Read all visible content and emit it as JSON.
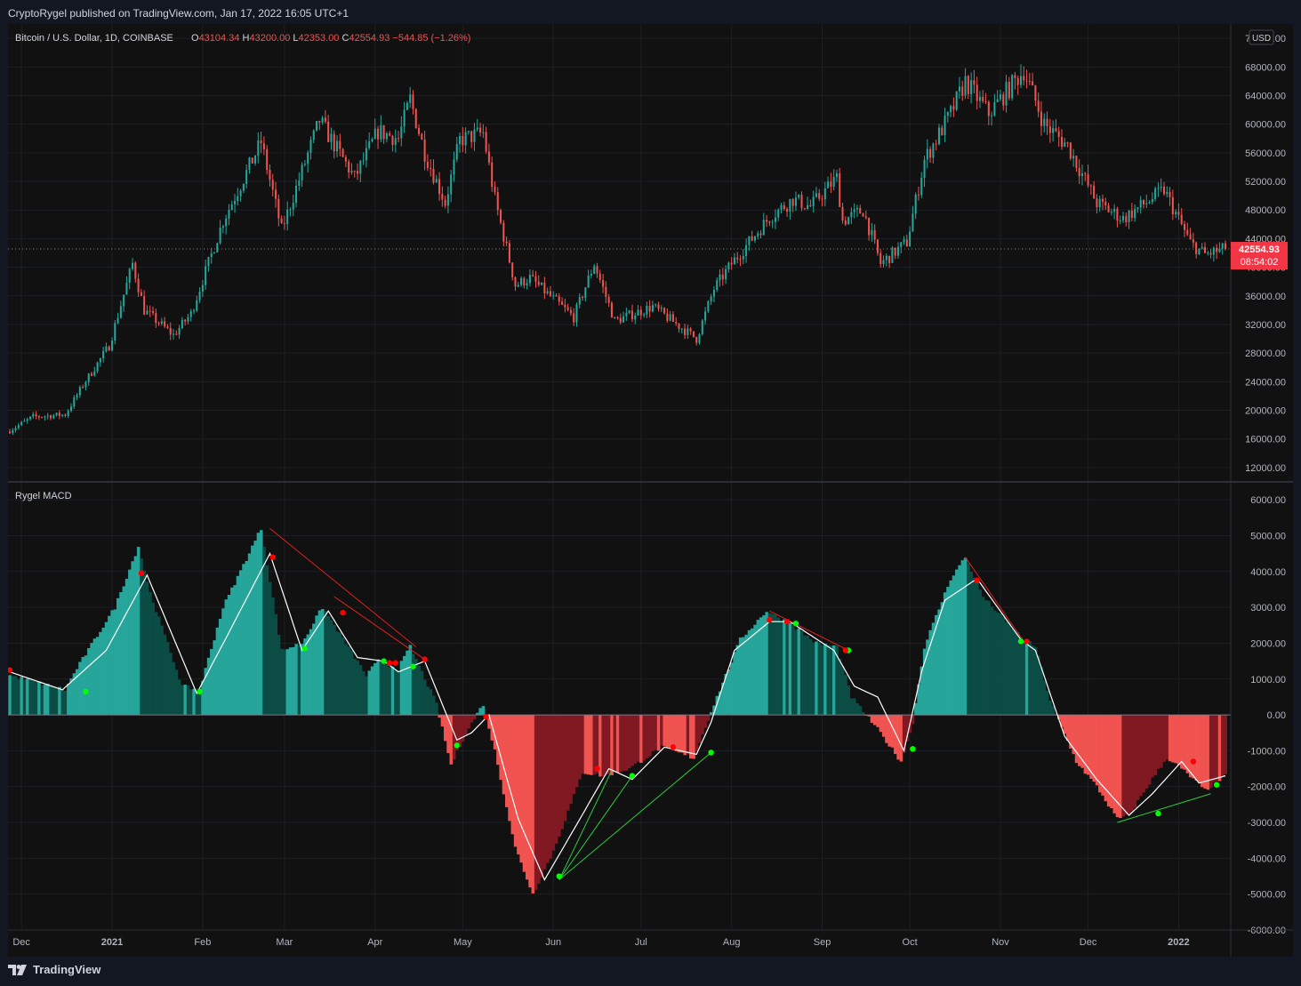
{
  "header": {
    "publish_line": "CryptoRygel published on TradingView.com, Jan 17, 2022 16:05 UTC+1"
  },
  "legend": {
    "symbol": "Bitcoin / U.S. Dollar, 1D, COINBASE",
    "open_label": "O",
    "open": "43104.34",
    "high_label": "H",
    "high": "43200.00",
    "low_label": "L",
    "low": "42353.00",
    "close_label": "C",
    "close": "42554.93",
    "change": "−544.85 (−1.26%)",
    "currency": "USD"
  },
  "indicator": {
    "name": "Rygel MACD"
  },
  "last_price": {
    "value": "42554.93",
    "countdown": "08:54:02"
  },
  "footer": {
    "brand": "TradingView"
  },
  "colors": {
    "background": "#111111",
    "up": "#26a69a",
    "down": "#ef5350",
    "hist_up_strong": "#26a69a",
    "hist_up_weak": "#0b4d45",
    "hist_down_strong": "#f05350",
    "hist_down_weak": "#801922",
    "signal": "#ffffff",
    "bull_div": "#00ff00",
    "bear_div": "#ff0000"
  },
  "chart_data": [
    {
      "type": "candlestick",
      "title": "",
      "y_scale": "linear",
      "ylim": [
        10000,
        74000
      ],
      "y_ticks": [
        "72000.00",
        "68000.00",
        "64000.00",
        "60000.00",
        "56000.00",
        "52000.00",
        "48000.00",
        "44000.00",
        "40000.00",
        "36000.00",
        "32000.00",
        "28000.00",
        "24000.00",
        "20000.00",
        "16000.00",
        "12000.00"
      ],
      "y_tick_values": [
        72000,
        68000,
        64000,
        60000,
        56000,
        52000,
        48000,
        44000,
        40000,
        36000,
        32000,
        28000,
        24000,
        20000,
        16000,
        12000
      ],
      "x_ticks": [
        "Dec",
        "2021",
        "Feb",
        "Mar",
        "Apr",
        "May",
        "Jun",
        "Jul",
        "Aug",
        "Sep",
        "Oct",
        "Nov",
        "Dec",
        "2022"
      ],
      "x_tick_dates": [
        "2020-12-01",
        "2021-01-01",
        "2021-02-01",
        "2021-03-01",
        "2021-04-01",
        "2021-05-01",
        "2021-06-01",
        "2021-07-01",
        "2021-08-01",
        "2021-09-01",
        "2021-10-01",
        "2021-11-01",
        "2021-12-01",
        "2022-01-01"
      ],
      "date_range": [
        "2020-11-27",
        "2022-01-17"
      ],
      "close_anchors": [
        [
          "2020-11-27",
          17200
        ],
        [
          "2020-12-05",
          19100
        ],
        [
          "2020-12-16",
          19400
        ],
        [
          "2020-12-22",
          23500
        ],
        [
          "2020-12-31",
          29000
        ],
        [
          "2021-01-08",
          40500
        ],
        [
          "2021-01-12",
          34000
        ],
        [
          "2021-01-22",
          30500
        ],
        [
          "2021-01-28",
          33500
        ],
        [
          "2021-02-08",
          46500
        ],
        [
          "2021-02-21",
          57500
        ],
        [
          "2021-02-28",
          45200
        ],
        [
          "2021-03-13",
          60500
        ],
        [
          "2021-03-25",
          52500
        ],
        [
          "2021-04-02",
          59000
        ],
        [
          "2021-04-09",
          58000
        ],
        [
          "2021-04-13",
          63500
        ],
        [
          "2021-04-18",
          56000
        ],
        [
          "2021-04-25",
          49000
        ],
        [
          "2021-04-30",
          57800
        ],
        [
          "2021-05-08",
          58800
        ],
        [
          "2021-05-12",
          49500
        ],
        [
          "2021-05-19",
          37500
        ],
        [
          "2021-05-24",
          38500
        ],
        [
          "2021-06-08",
          33000
        ],
        [
          "2021-06-15",
          40500
        ],
        [
          "2021-06-22",
          32500
        ],
        [
          "2021-07-05",
          34500
        ],
        [
          "2021-07-20",
          30000
        ],
        [
          "2021-07-26",
          37000
        ],
        [
          "2021-08-01",
          40500
        ],
        [
          "2021-08-14",
          47000
        ],
        [
          "2021-08-22",
          49500
        ],
        [
          "2021-08-28",
          48500
        ],
        [
          "2021-09-06",
          52500
        ],
        [
          "2021-09-08",
          46500
        ],
        [
          "2021-09-15",
          48000
        ],
        [
          "2021-09-21",
          40500
        ],
        [
          "2021-09-30",
          43500
        ],
        [
          "2021-10-06",
          55000
        ],
        [
          "2021-10-15",
          61500
        ],
        [
          "2021-10-20",
          66000
        ],
        [
          "2021-10-28",
          61500
        ],
        [
          "2021-11-09",
          67500
        ],
        [
          "2021-11-16",
          60000
        ],
        [
          "2021-11-24",
          57000
        ],
        [
          "2021-12-04",
          49000
        ],
        [
          "2021-12-13",
          46800
        ],
        [
          "2021-12-27",
          50800
        ],
        [
          "2022-01-05",
          43400
        ],
        [
          "2022-01-10",
          41800
        ],
        [
          "2022-01-17",
          42554.93
        ]
      ],
      "last_price": 42554.93
    },
    {
      "type": "histogram",
      "title": "Rygel MACD",
      "ylim": [
        -6000,
        6500
      ],
      "y_ticks": [
        "6000.00",
        "5000.00",
        "4000.00",
        "3000.00",
        "2000.00",
        "1000.00",
        "0.00",
        "-1000.00",
        "-2000.00",
        "-3000.00",
        "-4000.00",
        "-5000.00",
        "-6000.00"
      ],
      "y_tick_values": [
        6000,
        5000,
        4000,
        3000,
        2000,
        1000,
        0,
        -1000,
        -2000,
        -3000,
        -4000,
        -5000,
        -6000
      ],
      "histogram_anchors": [
        [
          "2020-11-27",
          1100
        ],
        [
          "2020-12-16",
          700
        ],
        [
          "2020-12-20",
          1300
        ],
        [
          "2021-01-02",
          3000
        ],
        [
          "2021-01-10",
          4700
        ],
        [
          "2021-01-14",
          3400
        ],
        [
          "2021-01-25",
          800
        ],
        [
          "2021-01-31",
          700
        ],
        [
          "2021-02-08",
          3000
        ],
        [
          "2021-02-21",
          5200
        ],
        [
          "2021-02-28",
          1800
        ],
        [
          "2021-03-07",
          2000
        ],
        [
          "2021-03-14",
          3000
        ],
        [
          "2021-03-22",
          2000
        ],
        [
          "2021-03-29",
          1100
        ],
        [
          "2021-04-02",
          1500
        ],
        [
          "2021-04-09",
          1300
        ],
        [
          "2021-04-13",
          1900
        ],
        [
          "2021-04-22",
          300
        ],
        [
          "2021-04-27",
          -1400
        ],
        [
          "2021-05-02",
          -500
        ],
        [
          "2021-05-08",
          300
        ],
        [
          "2021-05-12",
          -1000
        ],
        [
          "2021-05-19",
          -3700
        ],
        [
          "2021-05-25",
          -5000
        ],
        [
          "2021-06-01",
          -3800
        ],
        [
          "2021-06-11",
          -1600
        ],
        [
          "2021-06-18",
          -1700
        ],
        [
          "2021-06-27",
          -1500
        ],
        [
          "2021-07-08",
          -900
        ],
        [
          "2021-07-19",
          -1200
        ],
        [
          "2021-07-25",
          100
        ],
        [
          "2021-08-04",
          2100
        ],
        [
          "2021-08-13",
          2900
        ],
        [
          "2021-08-22",
          2500
        ],
        [
          "2021-08-30",
          2000
        ],
        [
          "2021-09-06",
          1900
        ],
        [
          "2021-09-11",
          500
        ],
        [
          "2021-09-20",
          -400
        ],
        [
          "2021-09-28",
          -1300
        ],
        [
          "2021-10-02",
          -200
        ],
        [
          "2021-10-06",
          1900
        ],
        [
          "2021-10-15",
          3800
        ],
        [
          "2021-10-20",
          4400
        ],
        [
          "2021-10-26",
          3300
        ],
        [
          "2021-11-03",
          2600
        ],
        [
          "2021-11-09",
          2100
        ],
        [
          "2021-11-13",
          1900
        ],
        [
          "2021-11-18",
          400
        ],
        [
          "2021-11-27",
          -1300
        ],
        [
          "2021-12-04",
          -2000
        ],
        [
          "2021-12-11",
          -2900
        ],
        [
          "2021-12-15",
          -2800
        ],
        [
          "2021-12-22",
          -1900
        ],
        [
          "2021-12-28",
          -1200
        ],
        [
          "2022-01-02",
          -1500
        ],
        [
          "2022-01-10",
          -2100
        ],
        [
          "2022-01-17",
          -1700
        ]
      ],
      "signal_anchors": [
        [
          "2020-11-27",
          1200
        ],
        [
          "2020-12-15",
          700
        ],
        [
          "2020-12-30",
          1800
        ],
        [
          "2021-01-13",
          3900
        ],
        [
          "2021-01-30",
          600
        ],
        [
          "2021-02-10",
          2300
        ],
        [
          "2021-02-24",
          4500
        ],
        [
          "2021-03-07",
          1800
        ],
        [
          "2021-03-16",
          2900
        ],
        [
          "2021-03-26",
          1600
        ],
        [
          "2021-04-04",
          1500
        ],
        [
          "2021-04-09",
          1200
        ],
        [
          "2021-04-18",
          1500
        ],
        [
          "2021-04-29",
          -700
        ],
        [
          "2021-05-04",
          -500
        ],
        [
          "2021-05-10",
          0
        ],
        [
          "2021-05-20",
          -2900
        ],
        [
          "2021-05-29",
          -4600
        ],
        [
          "2021-06-08",
          -3200
        ],
        [
          "2021-06-20",
          -1500
        ],
        [
          "2021-06-28",
          -1800
        ],
        [
          "2021-07-09",
          -900
        ],
        [
          "2021-07-20",
          -1100
        ],
        [
          "2021-07-25",
          -200
        ],
        [
          "2021-08-02",
          1800
        ],
        [
          "2021-08-14",
          2600
        ],
        [
          "2021-08-21",
          2600
        ],
        [
          "2021-09-05",
          1800
        ],
        [
          "2021-09-12",
          800
        ],
        [
          "2021-09-20",
          500
        ],
        [
          "2021-09-29",
          -1000
        ],
        [
          "2021-10-05",
          1200
        ],
        [
          "2021-10-13",
          3200
        ],
        [
          "2021-10-24",
          3800
        ],
        [
          "2021-11-08",
          2100
        ],
        [
          "2021-11-13",
          1800
        ],
        [
          "2021-11-23",
          -600
        ],
        [
          "2021-12-04",
          -1800
        ],
        [
          "2021-12-15",
          -2800
        ],
        [
          "2021-12-23",
          -2200
        ],
        [
          "2022-01-02",
          -1300
        ],
        [
          "2022-01-08",
          -1900
        ],
        [
          "2022-01-17",
          -1700
        ]
      ],
      "bull_points": [
        [
          "2020-12-23",
          650
        ],
        [
          "2021-01-31",
          650
        ],
        [
          "2021-03-08",
          1850
        ],
        [
          "2021-04-04",
          1500
        ],
        [
          "2021-04-14",
          1350
        ],
        [
          "2021-04-29",
          -850
        ],
        [
          "2021-06-03",
          -4500
        ],
        [
          "2021-06-28",
          -1700
        ],
        [
          "2021-07-25",
          -1050
        ],
        [
          "2021-08-23",
          2550
        ],
        [
          "2021-09-10",
          1800
        ],
        [
          "2021-10-02",
          -950
        ],
        [
          "2021-11-08",
          2050
        ],
        [
          "2021-12-25",
          -2750
        ],
        [
          "2022-01-14",
          -1950
        ]
      ],
      "bear_points": [
        [
          "2020-11-27",
          1250
        ],
        [
          "2021-01-11",
          3950
        ],
        [
          "2021-02-25",
          4400
        ],
        [
          "2021-03-21",
          2850
        ],
        [
          "2021-04-06",
          1450
        ],
        [
          "2021-04-08",
          1450
        ],
        [
          "2021-04-18",
          1550
        ],
        [
          "2021-05-09",
          -50
        ],
        [
          "2021-06-16",
          -1500
        ],
        [
          "2021-07-12",
          -900
        ],
        [
          "2021-08-14",
          2650
        ],
        [
          "2021-08-20",
          2600
        ],
        [
          "2021-09-09",
          1800
        ],
        [
          "2021-10-24",
          3750
        ],
        [
          "2021-11-10",
          2050
        ],
        [
          "2022-01-06",
          -1300
        ]
      ],
      "divergence_lines": [
        {
          "kind": "bear",
          "from": [
            "2021-02-24",
            5200
          ],
          "to": [
            "2021-04-15",
            1900
          ]
        },
        {
          "kind": "bear",
          "from": [
            "2021-03-18",
            3300
          ],
          "to": [
            "2021-04-18",
            1550
          ]
        },
        {
          "kind": "bull",
          "from": [
            "2021-06-03",
            -4600
          ],
          "to": [
            "2021-06-21",
            -1550
          ]
        },
        {
          "kind": "bull",
          "from": [
            "2021-06-03",
            -4600
          ],
          "to": [
            "2021-06-28",
            -1700
          ]
        },
        {
          "kind": "bull",
          "from": [
            "2021-06-03",
            -4600
          ],
          "to": [
            "2021-07-25",
            -1050
          ]
        },
        {
          "kind": "bear",
          "from": [
            "2021-08-14",
            2900
          ],
          "to": [
            "2021-09-10",
            1800
          ]
        },
        {
          "kind": "bear",
          "from": [
            "2021-10-20",
            4400
          ],
          "to": [
            "2021-11-09",
            2050
          ]
        },
        {
          "kind": "bull",
          "from": [
            "2021-12-11",
            -3000
          ],
          "to": [
            "2022-01-12",
            -2200
          ]
        }
      ]
    }
  ]
}
